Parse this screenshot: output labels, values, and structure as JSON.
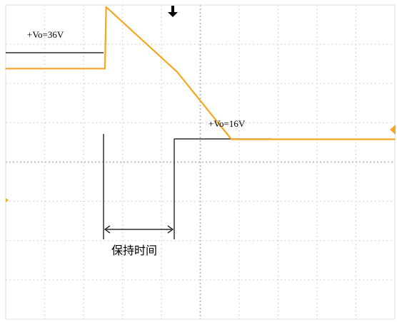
{
  "chart_data": {
    "type": "line",
    "title": "",
    "xlabel": "",
    "ylabel": "",
    "grid": true,
    "grid_style": "dotted",
    "grid_divisions": {
      "x": 10,
      "y": 8
    },
    "xlim": [
      0,
      10
    ],
    "ylim": [
      -4,
      4
    ],
    "trace_color": "#f5a623",
    "series": [
      {
        "name": "",
        "x": [
          0,
          2.55,
          2.58,
          4.4,
          5.8,
          10
        ],
        "y": [
          2.38,
          2.38,
          3.95,
          2.3,
          0.58,
          0.58
        ]
      }
    ],
    "annotations": {
      "v_start_label": "+Vo=36V",
      "v_end_label": "+Vo=16V",
      "hold_time_label": "保持时间"
    },
    "markers": {
      "trigger_marker": "down-arrow",
      "level_marker": "left-pointing-triangle",
      "ground_marker": "small-right-triangle"
    }
  }
}
